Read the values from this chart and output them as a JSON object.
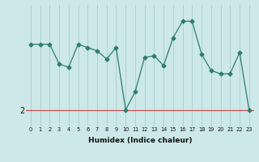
{
  "xlabel": "Humidex (Indice chaleur)",
  "x": [
    0,
    1,
    2,
    3,
    4,
    5,
    6,
    7,
    8,
    9,
    10,
    11,
    12,
    13,
    14,
    15,
    16,
    17,
    18,
    19,
    20,
    21,
    22,
    23
  ],
  "y": [
    4.0,
    4.0,
    4.0,
    3.4,
    3.3,
    4.0,
    3.9,
    3.8,
    3.55,
    3.9,
    2.0,
    2.55,
    3.6,
    3.65,
    3.35,
    4.2,
    4.7,
    4.7,
    3.7,
    3.2,
    3.1,
    3.1,
    3.75,
    2.0
  ],
  "line_color": "#2e7d6e",
  "marker": "D",
  "marker_size": 2.5,
  "bg_color": "#cce8e8",
  "hline_y": 2.0,
  "hline_color": "#cc4444",
  "ytick_labels": [
    "2"
  ],
  "ytick_values": [
    2.0
  ],
  "grid_color": "#aacece",
  "xlim": [
    -0.5,
    23.5
  ],
  "ylim": [
    1.5,
    5.2
  ]
}
